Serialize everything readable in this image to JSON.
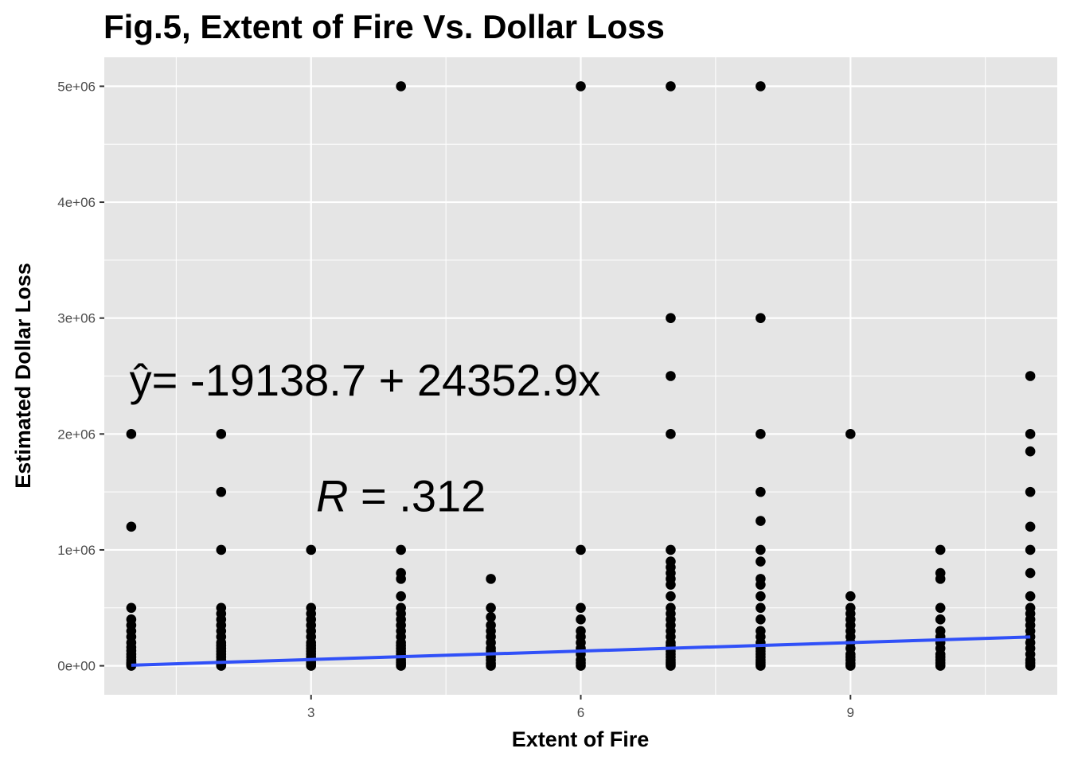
{
  "chart_data": {
    "type": "scatter",
    "title": "Fig.5, Extent of Fire Vs. Dollar Loss",
    "xlabel": "Extent of Fire",
    "ylabel": "Estimated Dollar Loss",
    "xlim": [
      0.7,
      11.3
    ],
    "ylim": [
      -250000,
      5250000
    ],
    "x_ticks": [
      3,
      6,
      9
    ],
    "x_tick_labels": [
      "3",
      "6",
      "9"
    ],
    "y_ticks": [
      0,
      1000000,
      2000000,
      3000000,
      4000000,
      5000000
    ],
    "y_tick_labels": [
      "0e+00",
      "1e+06",
      "2e+06",
      "3e+06",
      "4e+06",
      "5e+06"
    ],
    "grid": true,
    "point_color": "#000000",
    "line_color": "#3050f8",
    "background_color": "#e5e5e5",
    "points": [
      {
        "x": 1,
        "y": 0
      },
      {
        "x": 1,
        "y": 10000
      },
      {
        "x": 1,
        "y": 20000
      },
      {
        "x": 1,
        "y": 30000
      },
      {
        "x": 1,
        "y": 50000
      },
      {
        "x": 1,
        "y": 75000
      },
      {
        "x": 1,
        "y": 100000
      },
      {
        "x": 1,
        "y": 130000
      },
      {
        "x": 1,
        "y": 160000
      },
      {
        "x": 1,
        "y": 200000
      },
      {
        "x": 1,
        "y": 250000
      },
      {
        "x": 1,
        "y": 300000
      },
      {
        "x": 1,
        "y": 350000
      },
      {
        "x": 1,
        "y": 400000
      },
      {
        "x": 1,
        "y": 500000
      },
      {
        "x": 1,
        "y": 1200000
      },
      {
        "x": 1,
        "y": 2000000
      },
      {
        "x": 2,
        "y": 0
      },
      {
        "x": 2,
        "y": 10000
      },
      {
        "x": 2,
        "y": 25000
      },
      {
        "x": 2,
        "y": 50000
      },
      {
        "x": 2,
        "y": 75000
      },
      {
        "x": 2,
        "y": 100000
      },
      {
        "x": 2,
        "y": 125000
      },
      {
        "x": 2,
        "y": 150000
      },
      {
        "x": 2,
        "y": 175000
      },
      {
        "x": 2,
        "y": 200000
      },
      {
        "x": 2,
        "y": 250000
      },
      {
        "x": 2,
        "y": 300000
      },
      {
        "x": 2,
        "y": 350000
      },
      {
        "x": 2,
        "y": 400000
      },
      {
        "x": 2,
        "y": 450000
      },
      {
        "x": 2,
        "y": 500000
      },
      {
        "x": 2,
        "y": 1000000
      },
      {
        "x": 2,
        "y": 1500000
      },
      {
        "x": 2,
        "y": 2000000
      },
      {
        "x": 3,
        "y": 0
      },
      {
        "x": 3,
        "y": 15000
      },
      {
        "x": 3,
        "y": 30000
      },
      {
        "x": 3,
        "y": 50000
      },
      {
        "x": 3,
        "y": 75000
      },
      {
        "x": 3,
        "y": 100000
      },
      {
        "x": 3,
        "y": 125000
      },
      {
        "x": 3,
        "y": 150000
      },
      {
        "x": 3,
        "y": 175000
      },
      {
        "x": 3,
        "y": 200000
      },
      {
        "x": 3,
        "y": 250000
      },
      {
        "x": 3,
        "y": 300000
      },
      {
        "x": 3,
        "y": 350000
      },
      {
        "x": 3,
        "y": 400000
      },
      {
        "x": 3,
        "y": 450000
      },
      {
        "x": 3,
        "y": 500000
      },
      {
        "x": 3,
        "y": 1000000
      },
      {
        "x": 4,
        "y": 0
      },
      {
        "x": 4,
        "y": 15000
      },
      {
        "x": 4,
        "y": 30000
      },
      {
        "x": 4,
        "y": 50000
      },
      {
        "x": 4,
        "y": 75000
      },
      {
        "x": 4,
        "y": 100000
      },
      {
        "x": 4,
        "y": 125000
      },
      {
        "x": 4,
        "y": 150000
      },
      {
        "x": 4,
        "y": 175000
      },
      {
        "x": 4,
        "y": 200000
      },
      {
        "x": 4,
        "y": 250000
      },
      {
        "x": 4,
        "y": 300000
      },
      {
        "x": 4,
        "y": 350000
      },
      {
        "x": 4,
        "y": 400000
      },
      {
        "x": 4,
        "y": 450000
      },
      {
        "x": 4,
        "y": 500000
      },
      {
        "x": 4,
        "y": 600000
      },
      {
        "x": 4,
        "y": 750000
      },
      {
        "x": 4,
        "y": 800000
      },
      {
        "x": 4,
        "y": 1000000
      },
      {
        "x": 4,
        "y": 5000000
      },
      {
        "x": 5,
        "y": 0
      },
      {
        "x": 5,
        "y": 20000
      },
      {
        "x": 5,
        "y": 50000
      },
      {
        "x": 5,
        "y": 75000
      },
      {
        "x": 5,
        "y": 100000
      },
      {
        "x": 5,
        "y": 125000
      },
      {
        "x": 5,
        "y": 150000
      },
      {
        "x": 5,
        "y": 200000
      },
      {
        "x": 5,
        "y": 250000
      },
      {
        "x": 5,
        "y": 300000
      },
      {
        "x": 5,
        "y": 350000
      },
      {
        "x": 5,
        "y": 420000
      },
      {
        "x": 5,
        "y": 500000
      },
      {
        "x": 5,
        "y": 750000
      },
      {
        "x": 6,
        "y": 0
      },
      {
        "x": 6,
        "y": 25000
      },
      {
        "x": 6,
        "y": 50000
      },
      {
        "x": 6,
        "y": 100000
      },
      {
        "x": 6,
        "y": 150000
      },
      {
        "x": 6,
        "y": 200000
      },
      {
        "x": 6,
        "y": 250000
      },
      {
        "x": 6,
        "y": 300000
      },
      {
        "x": 6,
        "y": 400000
      },
      {
        "x": 6,
        "y": 500000
      },
      {
        "x": 6,
        "y": 1000000
      },
      {
        "x": 6,
        "y": 5000000
      },
      {
        "x": 7,
        "y": 0
      },
      {
        "x": 7,
        "y": 15000
      },
      {
        "x": 7,
        "y": 30000
      },
      {
        "x": 7,
        "y": 50000
      },
      {
        "x": 7,
        "y": 75000
      },
      {
        "x": 7,
        "y": 100000
      },
      {
        "x": 7,
        "y": 125000
      },
      {
        "x": 7,
        "y": 150000
      },
      {
        "x": 7,
        "y": 175000
      },
      {
        "x": 7,
        "y": 200000
      },
      {
        "x": 7,
        "y": 250000
      },
      {
        "x": 7,
        "y": 300000
      },
      {
        "x": 7,
        "y": 350000
      },
      {
        "x": 7,
        "y": 400000
      },
      {
        "x": 7,
        "y": 450000
      },
      {
        "x": 7,
        "y": 500000
      },
      {
        "x": 7,
        "y": 600000
      },
      {
        "x": 7,
        "y": 700000
      },
      {
        "x": 7,
        "y": 750000
      },
      {
        "x": 7,
        "y": 800000
      },
      {
        "x": 7,
        "y": 850000
      },
      {
        "x": 7,
        "y": 900000
      },
      {
        "x": 7,
        "y": 1000000
      },
      {
        "x": 7,
        "y": 2000000
      },
      {
        "x": 7,
        "y": 2500000
      },
      {
        "x": 7,
        "y": 3000000
      },
      {
        "x": 7,
        "y": 5000000
      },
      {
        "x": 8,
        "y": 0
      },
      {
        "x": 8,
        "y": 15000
      },
      {
        "x": 8,
        "y": 30000
      },
      {
        "x": 8,
        "y": 50000
      },
      {
        "x": 8,
        "y": 75000
      },
      {
        "x": 8,
        "y": 100000
      },
      {
        "x": 8,
        "y": 125000
      },
      {
        "x": 8,
        "y": 150000
      },
      {
        "x": 8,
        "y": 200000
      },
      {
        "x": 8,
        "y": 250000
      },
      {
        "x": 8,
        "y": 300000
      },
      {
        "x": 8,
        "y": 400000
      },
      {
        "x": 8,
        "y": 500000
      },
      {
        "x": 8,
        "y": 600000
      },
      {
        "x": 8,
        "y": 700000
      },
      {
        "x": 8,
        "y": 750000
      },
      {
        "x": 8,
        "y": 900000
      },
      {
        "x": 8,
        "y": 1000000
      },
      {
        "x": 8,
        "y": 1250000
      },
      {
        "x": 8,
        "y": 1500000
      },
      {
        "x": 8,
        "y": 2000000
      },
      {
        "x": 8,
        "y": 3000000
      },
      {
        "x": 8,
        "y": 5000000
      },
      {
        "x": 9,
        "y": 0
      },
      {
        "x": 9,
        "y": 20000
      },
      {
        "x": 9,
        "y": 50000
      },
      {
        "x": 9,
        "y": 75000
      },
      {
        "x": 9,
        "y": 100000
      },
      {
        "x": 9,
        "y": 150000
      },
      {
        "x": 9,
        "y": 200000
      },
      {
        "x": 9,
        "y": 250000
      },
      {
        "x": 9,
        "y": 300000
      },
      {
        "x": 9,
        "y": 350000
      },
      {
        "x": 9,
        "y": 400000
      },
      {
        "x": 9,
        "y": 450000
      },
      {
        "x": 9,
        "y": 500000
      },
      {
        "x": 9,
        "y": 600000
      },
      {
        "x": 9,
        "y": 2000000
      },
      {
        "x": 10,
        "y": 0
      },
      {
        "x": 10,
        "y": 25000
      },
      {
        "x": 10,
        "y": 50000
      },
      {
        "x": 10,
        "y": 75000
      },
      {
        "x": 10,
        "y": 100000
      },
      {
        "x": 10,
        "y": 150000
      },
      {
        "x": 10,
        "y": 200000
      },
      {
        "x": 10,
        "y": 250000
      },
      {
        "x": 10,
        "y": 300000
      },
      {
        "x": 10,
        "y": 400000
      },
      {
        "x": 10,
        "y": 500000
      },
      {
        "x": 10,
        "y": 750000
      },
      {
        "x": 10,
        "y": 800000
      },
      {
        "x": 10,
        "y": 1000000
      },
      {
        "x": 11,
        "y": 0
      },
      {
        "x": 11,
        "y": 25000
      },
      {
        "x": 11,
        "y": 50000
      },
      {
        "x": 11,
        "y": 100000
      },
      {
        "x": 11,
        "y": 150000
      },
      {
        "x": 11,
        "y": 200000
      },
      {
        "x": 11,
        "y": 250000
      },
      {
        "x": 11,
        "y": 300000
      },
      {
        "x": 11,
        "y": 350000
      },
      {
        "x": 11,
        "y": 400000
      },
      {
        "x": 11,
        "y": 450000
      },
      {
        "x": 11,
        "y": 500000
      },
      {
        "x": 11,
        "y": 600000
      },
      {
        "x": 11,
        "y": 800000
      },
      {
        "x": 11,
        "y": 1000000
      },
      {
        "x": 11,
        "y": 1200000
      },
      {
        "x": 11,
        "y": 1500000
      },
      {
        "x": 11,
        "y": 1850000
      },
      {
        "x": 11,
        "y": 2000000
      },
      {
        "x": 11,
        "y": 2500000
      }
    ],
    "regression_line": {
      "intercept": -19138.7,
      "slope": 24352.9,
      "x_range": [
        1,
        11
      ]
    },
    "annotations": [
      {
        "text": "ŷ= -19138.7 + 24352.9x",
        "x": 3.6,
        "y": 2470000
      },
      {
        "text_italic": "R",
        "text": " = .312",
        "x": 4.0,
        "y": 1470000
      }
    ]
  }
}
